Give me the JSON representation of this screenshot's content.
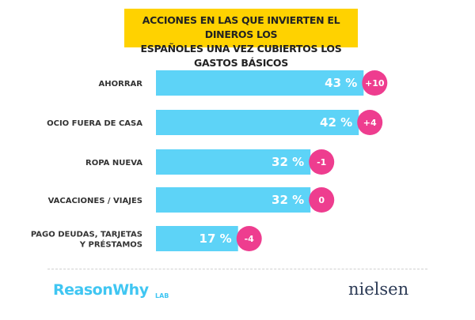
{
  "title_lines": [
    "ACCIONES EN LAS QUE INVIERTEN EL DINEROS LOS",
    "ESPAÑOLES UNA VEZ CUBIERTOS LOS GASTOS BÁSICOS"
  ],
  "chart_data": {
    "type": "bar",
    "orientation": "horizontal",
    "categories": [
      [
        "AHORRAR"
      ],
      [
        "OCIO FUERA DE CASA"
      ],
      [
        "ROPA NUEVA"
      ],
      [
        "VACACIONES / VIAJES"
      ],
      [
        "PAGO DEUDAS, TARJETAS",
        "Y PRÉSTAMOS"
      ]
    ],
    "values": [
      43,
      42,
      32,
      32,
      17
    ],
    "value_labels": [
      "43 %",
      "42 %",
      "32 %",
      "32 %",
      "17 %"
    ],
    "changes": [
      "+10",
      "+4",
      "-1",
      "0",
      "-4"
    ],
    "bar_color": "#5dd3f7",
    "badge_color": "#ee3d8f"
  },
  "logos": {
    "left_main": "ReasonWhy",
    "left_suffix": "LAB",
    "right": "nielsen"
  }
}
